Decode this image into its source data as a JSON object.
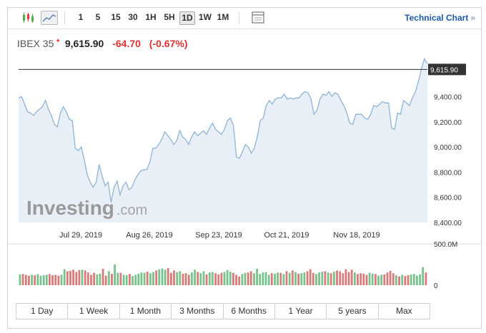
{
  "toolbar": {
    "timeframes": [
      "1",
      "5",
      "15",
      "30",
      "1H",
      "5H",
      "1D",
      "1W",
      "1M"
    ],
    "selected": "1D",
    "technical_chart_label": "Technical Chart",
    "technical_chart_chevron": "»"
  },
  "header": {
    "instrument": "IBEX 35",
    "flag_glyph": "✦",
    "price": "9,615.90",
    "change": "-64.70",
    "change_pct": "(-0.67%)"
  },
  "watermark": {
    "brand": "Investing",
    "suffix": ".com"
  },
  "ranges": [
    "1 Day",
    "1 Week",
    "1 Month",
    "3 Months",
    "6 Months",
    "1 Year",
    "5 years",
    "Max"
  ],
  "colors": {
    "line": "#8fb4d6",
    "area": "#e8eff7",
    "up": "#79c28e",
    "down": "#d97b7b",
    "negative": "#e03131",
    "link": "#1b5aa8"
  },
  "chart_data": {
    "type": "area",
    "x_tick_labels": [
      "Jul 29, 2019",
      "Aug 26, 2019",
      "Sep 23, 2019",
      "Oct 21, 2019",
      "Nov 18, 2019"
    ],
    "y_tick_labels": [
      "9,400.00",
      "9,200.00",
      "9,000.00",
      "8,800.00",
      "8,600.00",
      "8,400.00"
    ],
    "y_ticks": [
      9400,
      9200,
      9000,
      8800,
      8600,
      8400
    ],
    "ylim": [
      8400,
      9700
    ],
    "last_price_label": "9,615.90",
    "last_price": 9615.9,
    "close": [
      9390,
      9400,
      9340,
      9280,
      9270,
      9250,
      9280,
      9300,
      9320,
      9370,
      9300,
      9250,
      9180,
      9160,
      9270,
      9320,
      9280,
      9220,
      9210,
      8990,
      8970,
      9000,
      8900,
      8780,
      8720,
      8680,
      8720,
      8860,
      8770,
      8690,
      8720,
      8560,
      8680,
      8730,
      8620,
      8690,
      8720,
      8660,
      8680,
      8740,
      8780,
      8810,
      8820,
      8820,
      8880,
      8990,
      8990,
      9020,
      9060,
      9120,
      9090,
      9060,
      9020,
      9050,
      9130,
      9080,
      9060,
      9020,
      9080,
      9120,
      9090,
      9110,
      9130,
      9100,
      9150,
      9190,
      9140,
      9120,
      9100,
      9140,
      9210,
      9230,
      9170,
      8920,
      8910,
      8960,
      9020,
      9000,
      8950,
      8990,
      9080,
      9210,
      9230,
      9330,
      9370,
      9340,
      9380,
      9390,
      9390,
      9420,
      9380,
      9390,
      9380,
      9390,
      9390,
      9420,
      9440,
      9430,
      9380,
      9260,
      9290,
      9380,
      9420,
      9410,
      9440,
      9400,
      9430,
      9420,
      9370,
      9330,
      9270,
      9190,
      9180,
      9260,
      9260,
      9260,
      9230,
      9220,
      9260,
      9330,
      9320,
      9340,
      9360,
      9350,
      9350,
      9150,
      9140,
      9270,
      9260,
      9370,
      9350,
      9330,
      9390,
      9440,
      9520,
      9620,
      9700,
      9660
    ],
    "volume_axis_labels": [
      "500.0M",
      "0"
    ],
    "volume_max": 500,
    "volume_unit": "M",
    "volume": [
      135,
      140,
      130,
      120,
      130,
      125,
      140,
      120,
      125,
      130,
      140,
      125,
      130,
      120,
      130,
      200,
      175,
      180,
      195,
      165,
      190,
      195,
      185,
      160,
      130,
      155,
      135,
      145,
      205,
      120,
      175,
      145,
      260,
      155,
      155,
      130,
      125,
      140,
      115,
      130,
      145,
      160,
      155,
      170,
      150,
      165,
      185,
      200,
      210,
      195,
      215,
      155,
      185,
      165,
      175,
      145,
      150,
      130,
      160,
      195,
      165,
      150,
      175,
      135,
      160,
      165,
      150,
      135,
      155,
      165,
      190,
      170,
      155,
      130,
      110,
      140,
      155,
      160,
      175,
      150,
      205,
      140,
      160,
      165,
      130,
      150,
      145,
      160,
      155,
      140,
      175,
      155,
      185,
      165,
      145,
      150,
      160,
      175,
      200,
      155,
      140,
      160,
      170,
      175,
      160,
      150,
      170,
      185,
      175,
      150,
      200,
      165,
      195,
      160,
      140,
      150,
      145,
      130,
      155,
      145,
      140,
      120,
      130,
      135,
      160,
      180,
      150,
      125,
      110,
      130,
      115,
      125,
      135,
      140,
      120,
      135,
      225,
      160
    ],
    "volume_up": [
      true,
      false,
      false,
      false,
      true,
      false,
      true,
      true,
      true,
      true,
      false,
      false,
      false,
      false,
      true,
      true,
      false,
      false,
      false,
      false,
      false,
      true,
      false,
      false,
      false,
      false,
      true,
      true,
      false,
      false,
      true,
      false,
      true,
      true,
      false,
      true,
      true,
      false,
      true,
      true,
      true,
      true,
      true,
      false,
      true,
      true,
      false,
      true,
      true,
      true,
      false,
      false,
      false,
      true,
      true,
      false,
      false,
      false,
      true,
      true,
      false,
      true,
      true,
      false,
      true,
      true,
      false,
      false,
      false,
      true,
      true,
      true,
      false,
      false,
      false,
      true,
      true,
      false,
      false,
      true,
      true,
      true,
      true,
      true,
      true,
      false,
      true,
      true,
      false,
      true,
      false,
      true,
      false,
      true,
      false,
      true,
      true,
      false,
      false,
      false,
      true,
      true,
      true,
      false,
      true,
      false,
      true,
      false,
      false,
      false,
      false,
      false,
      false,
      true,
      false,
      false,
      false,
      false,
      true,
      true,
      false,
      true,
      true,
      false,
      false,
      false,
      false,
      true,
      false,
      true,
      false,
      false,
      true,
      true,
      true,
      true,
      true,
      false
    ]
  }
}
